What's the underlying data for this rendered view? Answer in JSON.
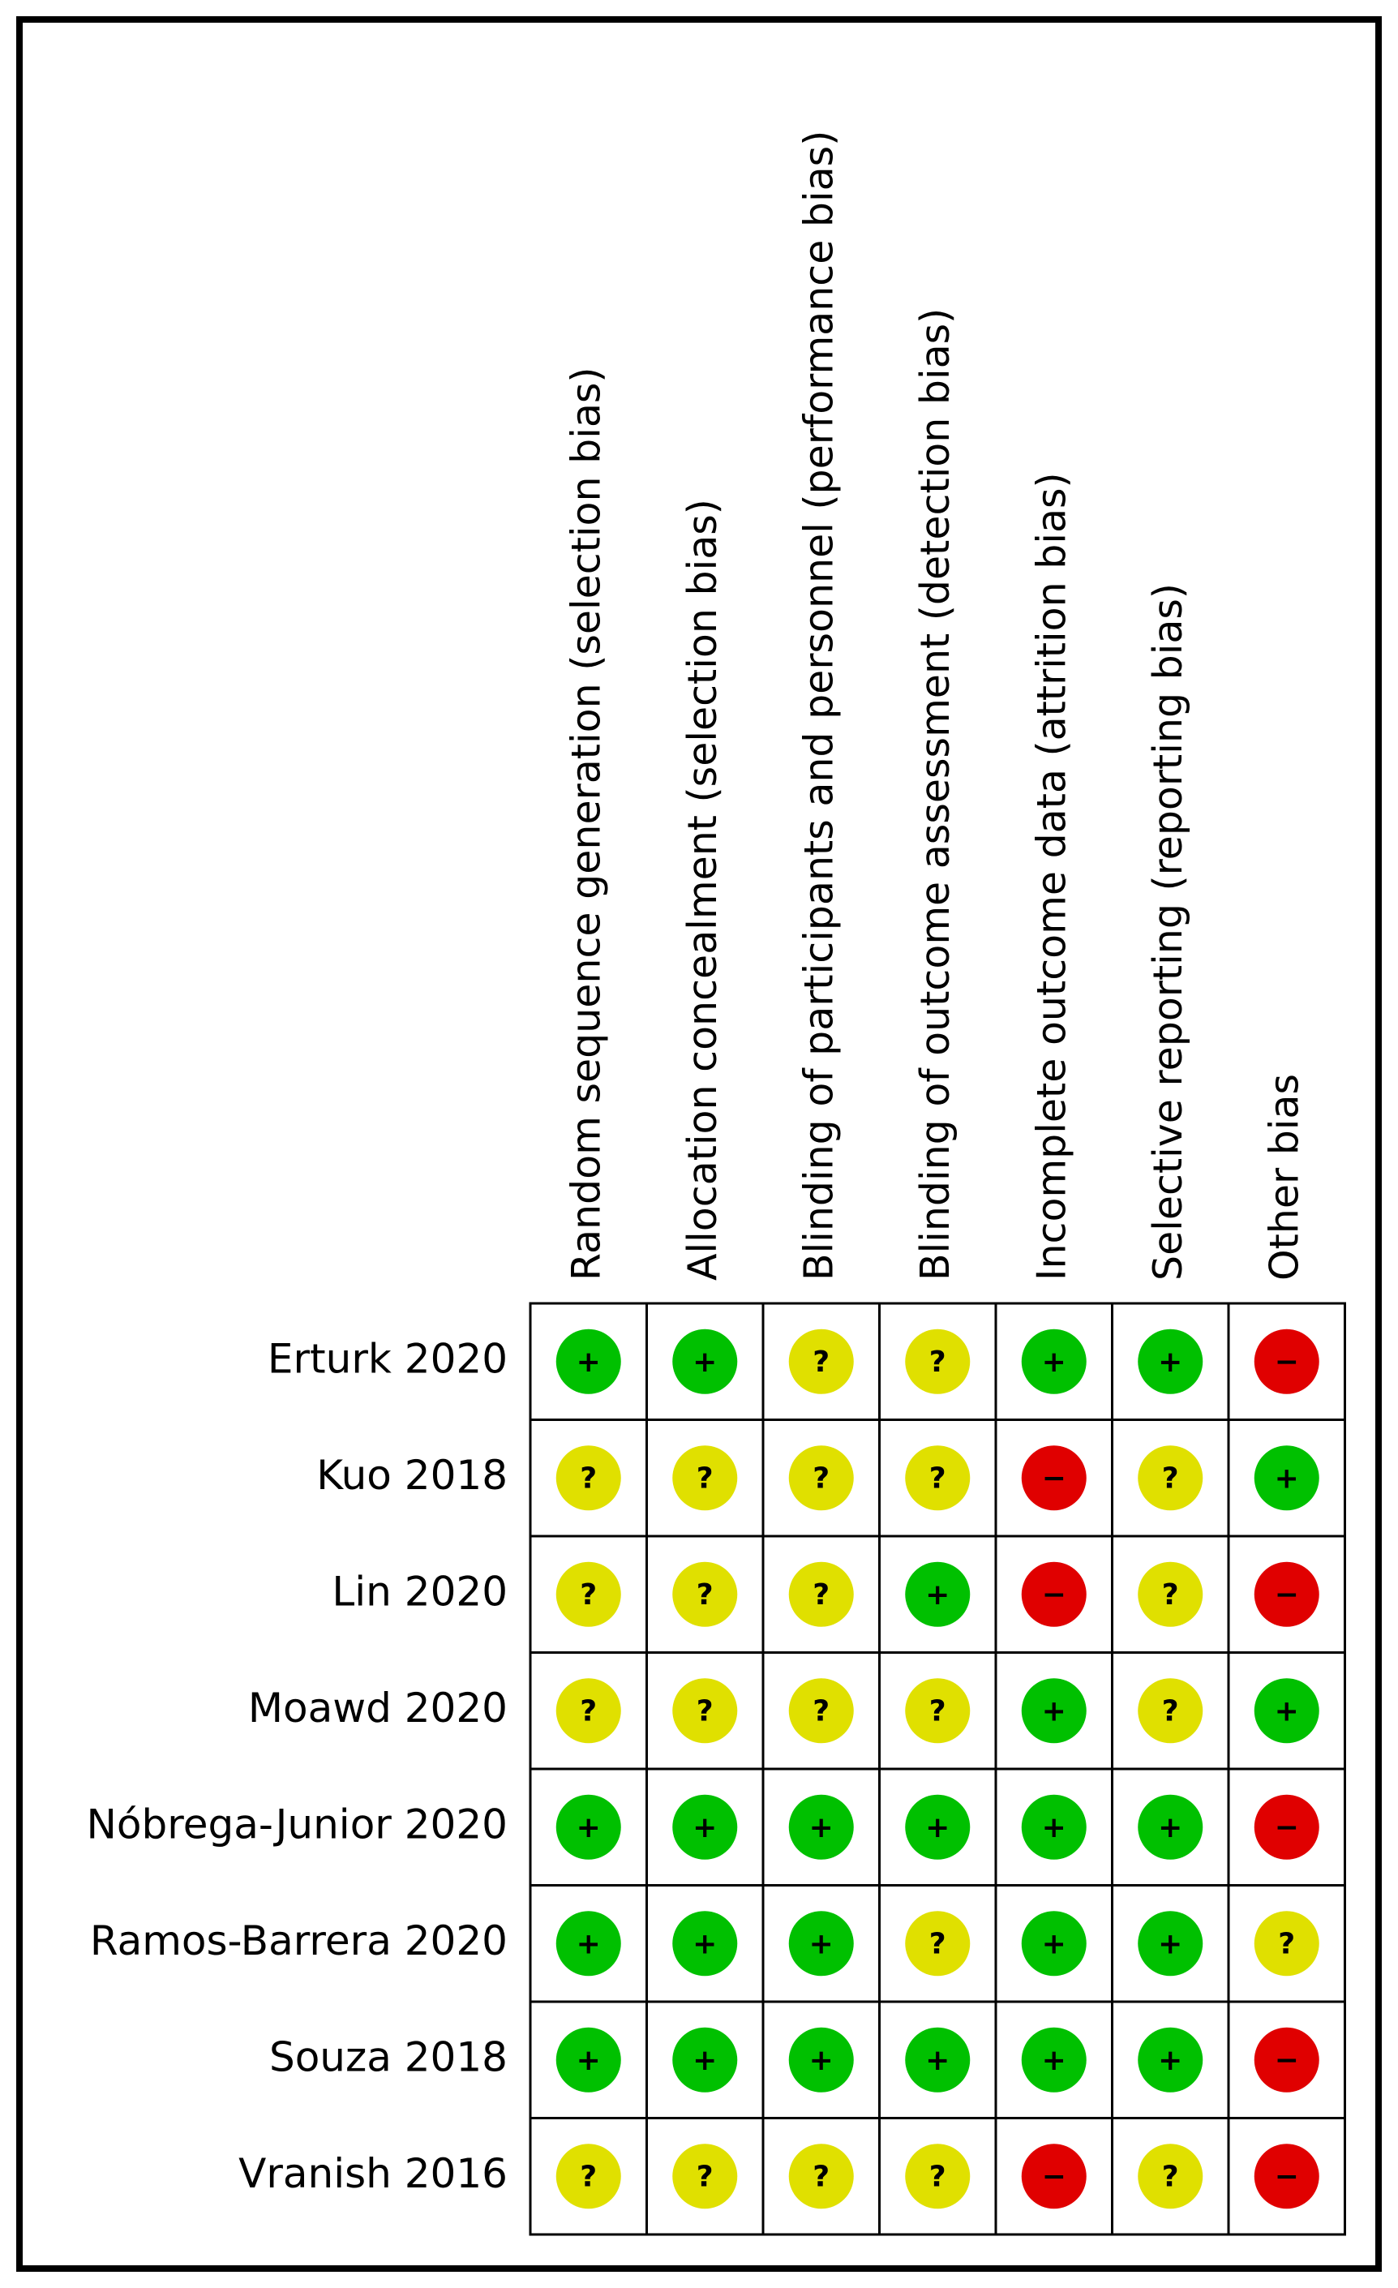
{
  "columns": [
    "Random sequence generation (selection bias)",
    "Allocation concealment (selection bias)",
    "Blinding of participants and personnel (performance bias)",
    "Blinding of outcome assessment (detection bias)",
    "Incomplete outcome data (attrition bias)",
    "Selective reporting (reporting bias)",
    "Other bias"
  ],
  "rows": [
    {
      "name": "Erturk 2020",
      "ratings": [
        "+",
        "+",
        "?",
        "?",
        "+",
        "+",
        "−"
      ]
    },
    {
      "name": "Kuo 2018",
      "ratings": [
        "?",
        "?",
        "?",
        "?",
        "−",
        "?",
        "+"
      ]
    },
    {
      "name": "Lin 2020",
      "ratings": [
        "?",
        "?",
        "?",
        "+",
        "−",
        "?",
        "−"
      ]
    },
    {
      "name": "Moawd 2020",
      "ratings": [
        "?",
        "?",
        "?",
        "?",
        "+",
        "?",
        "+"
      ]
    },
    {
      "name": "Nóbrega-Junior 2020",
      "ratings": [
        "+",
        "+",
        "+",
        "+",
        "+",
        "+",
        "−"
      ]
    },
    {
      "name": "Ramos-Barrera 2020",
      "ratings": [
        "+",
        "+",
        "+",
        "?",
        "+",
        "+",
        "?"
      ]
    },
    {
      "name": "Souza 2018",
      "ratings": [
        "+",
        "+",
        "+",
        "+",
        "+",
        "+",
        "−"
      ]
    },
    {
      "name": "Vranish 2016",
      "ratings": [
        "?",
        "?",
        "?",
        "?",
        "−",
        "?",
        "−"
      ]
    }
  ],
  "colors": {
    "+": "#00c000",
    "?": "#e0e000",
    "−": "#e00000"
  }
}
